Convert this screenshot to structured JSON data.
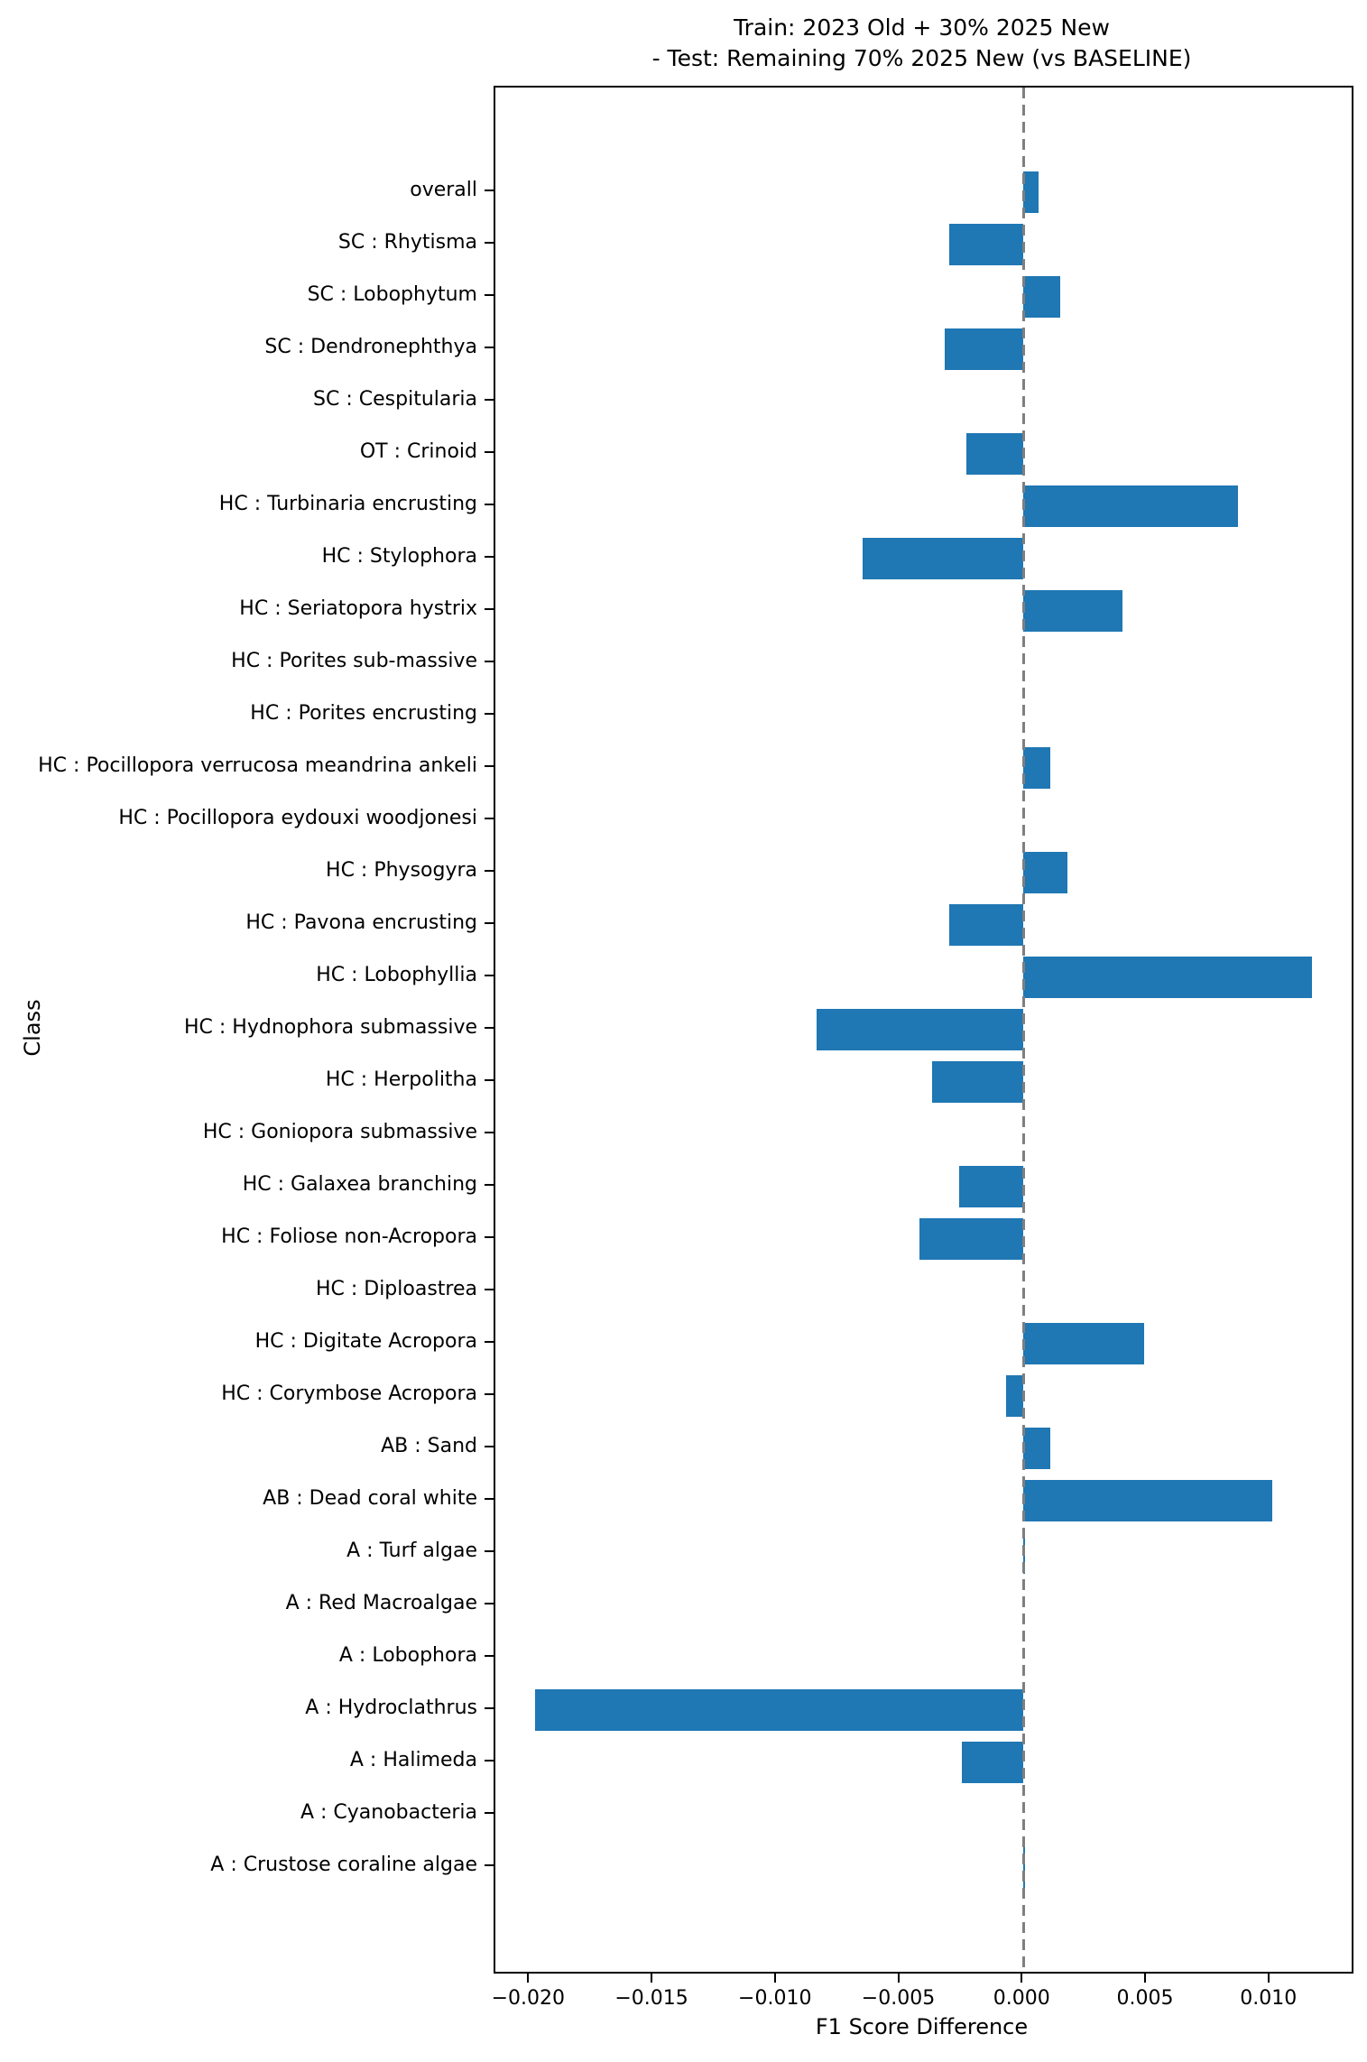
{
  "chart_data": {
    "type": "bar",
    "orientation": "horizontal",
    "title_line1": "Train: 2023 Old + 30% 2025 New",
    "title_line2": "- Test: Remaining 70% 2025 New (vs BASELINE)",
    "xlabel": "F1 Score Difference",
    "ylabel": "Class",
    "bar_color": "#1f77b4",
    "zero_line_color": "#7f7f7f",
    "grid": false,
    "legend": false,
    "xlim": [
      -0.0214,
      0.0133
    ],
    "xticks": [
      -0.02,
      -0.015,
      -0.01,
      -0.005,
      0.0,
      0.005,
      0.01
    ],
    "xtick_labels": [
      "−0.020",
      "−0.015",
      "−0.010",
      "−0.005",
      "0.000",
      "0.005",
      "0.010"
    ],
    "categories": [
      "overall",
      "SC : Rhytisma",
      "SC : Lobophytum",
      "SC : Dendronephthya",
      "SC : Cespitularia",
      "OT : Crinoid",
      "HC : Turbinaria encrusting",
      "HC : Stylophora",
      "HC : Seriatopora hystrix",
      "HC : Porites sub-massive",
      "HC : Porites encrusting",
      "HC : Pocillopora verrucosa meandrina ankeli",
      "HC : Pocillopora eydouxi woodjonesi",
      "HC : Physogyra",
      "HC : Pavona encrusting",
      "HC : Lobophyllia",
      "HC : Hydnophora submassive",
      "HC : Herpolitha",
      "HC : Goniopora submassive",
      "HC : Galaxea branching",
      "HC : Foliose non-Acropora",
      "HC : Diploastrea",
      "HC : Digitate Acropora",
      "HC : Corymbose Acropora",
      "AB : Sand",
      "AB : Dead coral white",
      "A : Turf algae",
      "A : Red Macroalgae",
      "A : Lobophora",
      "A : Hydroclathrus",
      "A : Halimeda",
      "A : Cyanobacteria",
      "A : Crustose coraline algae"
    ],
    "values": [
      0.0006,
      -0.003,
      0.0015,
      -0.0032,
      0.0,
      -0.0023,
      0.0087,
      -0.0065,
      0.004,
      0.0,
      0.0,
      0.0011,
      0.0,
      0.0018,
      -0.003,
      0.0117,
      -0.0084,
      -0.0037,
      0.0,
      -0.0026,
      -0.0042,
      0.0,
      0.0049,
      -0.0007,
      0.0011,
      0.0101,
      5e-05,
      0.0,
      0.0,
      -0.0198,
      -0.0025,
      0.0,
      5e-05
    ]
  }
}
